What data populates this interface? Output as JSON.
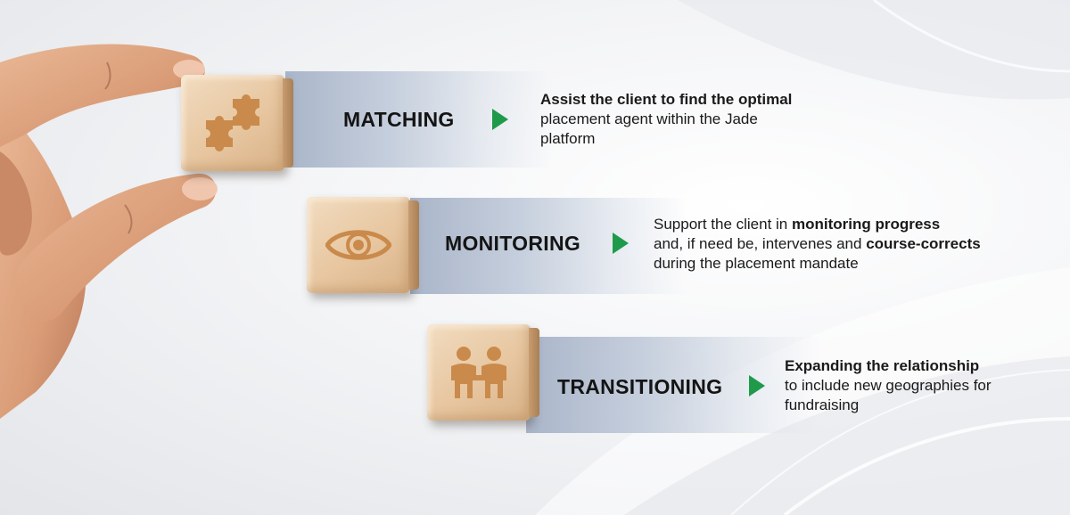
{
  "stages": [
    {
      "title": "MATCHING",
      "icon": "puzzle-icon",
      "desc_bold_1": "Assist the client to find the optimal",
      "desc_text_1": "placement agent within the Jade platform"
    },
    {
      "title": "MONITORING",
      "icon": "eye-icon",
      "desc_text_1": "Support the client in ",
      "desc_bold_1": "monitoring progress",
      "desc_text_2": "and, if need be, intervenes and ",
      "desc_bold_2": "course-corrects",
      "desc_text_3": " during the placement mandate"
    },
    {
      "title": "TRANSITIONING",
      "icon": "people-icon",
      "desc_bold_1": "Expanding the relationship",
      "desc_text_1": "to include new geographies for fundraising"
    }
  ],
  "colors": {
    "arrow": "#1f9a4a",
    "block_icon": "#c98a4b",
    "band": "#a9b5c9"
  }
}
